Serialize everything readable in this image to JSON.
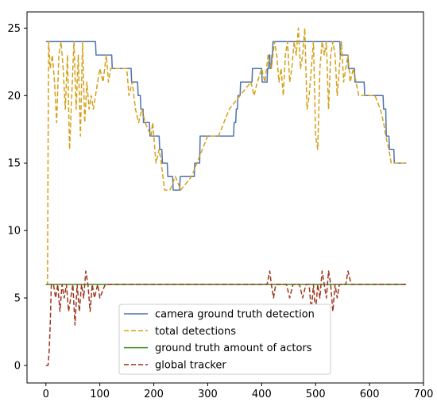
{
  "chart_data": {
    "type": "line",
    "title": "",
    "xlabel": "",
    "ylabel": "",
    "xlim": [
      -35,
      700
    ],
    "ylim": [
      -1.3,
      26.2
    ],
    "xticks": [
      0,
      100,
      200,
      300,
      400,
      500,
      600,
      700
    ],
    "yticks": [
      0,
      5,
      10,
      15,
      20,
      25
    ],
    "grid": false,
    "legend": {
      "placement": "lower center"
    },
    "series": [
      {
        "name": "camera ground truth detection",
        "color": "#4c72b0",
        "style": "solid",
        "x": [
          0,
          92,
          93,
          115,
          116,
          122,
          123,
          158,
          159,
          170,
          171,
          175,
          176,
          180,
          181,
          192,
          193,
          210,
          211,
          215,
          216,
          225,
          226,
          235,
          236,
          248,
          249,
          275,
          276,
          285,
          286,
          300,
          301,
          348,
          349,
          352,
          353,
          355,
          356,
          360,
          361,
          382,
          383,
          400,
          401,
          410,
          411,
          413,
          414,
          415,
          416,
          418,
          419,
          420,
          421,
          424,
          425,
          545,
          546,
          560,
          561,
          572,
          573,
          590,
          591,
          625,
          626,
          630,
          631,
          636,
          637,
          645,
          646,
          668
        ],
        "y": [
          24,
          24,
          23,
          23,
          23,
          23,
          22,
          22,
          21,
          21,
          20,
          20,
          19,
          19,
          18,
          18,
          17,
          17,
          16,
          16,
          15,
          15,
          14,
          14,
          13,
          13,
          14,
          14,
          15,
          15,
          17,
          17,
          17,
          17,
          18,
          18,
          19,
          19,
          20,
          20,
          21,
          21,
          22,
          22,
          21,
          21,
          22,
          22,
          23,
          23,
          22,
          22,
          23,
          23,
          24,
          24,
          24,
          24,
          23,
          23,
          22,
          22,
          21,
          21,
          20,
          20,
          19,
          19,
          17,
          17,
          16,
          16,
          15,
          15
        ]
      },
      {
        "name": "total detections",
        "color": "#d4a017",
        "style": "dashed",
        "x": [
          0,
          3,
          4,
          5,
          8,
          12,
          16,
          20,
          24,
          28,
          32,
          36,
          40,
          44,
          48,
          52,
          56,
          60,
          64,
          68,
          72,
          76,
          80,
          84,
          88,
          92,
          96,
          100,
          106,
          112,
          116,
          120,
          126,
          150,
          154,
          160,
          166,
          172,
          178,
          184,
          195,
          198,
          204,
          210,
          214,
          220,
          230,
          240,
          250,
          270,
          280,
          290,
          300,
          320,
          340,
          360,
          380,
          386,
          392,
          400,
          406,
          412,
          418,
          424,
          428,
          432,
          436,
          440,
          444,
          448,
          452,
          456,
          460,
          464,
          468,
          472,
          476,
          480,
          484,
          488,
          492,
          496,
          500,
          504,
          508,
          512,
          516,
          520,
          524,
          528,
          532,
          536,
          540,
          544,
          548,
          552,
          556,
          560,
          564,
          570,
          580,
          590,
          600,
          610,
          620,
          626,
          630,
          636,
          640,
          646,
          655,
          668
        ],
        "y": [
          6,
          6,
          16,
          24,
          22,
          23,
          21,
          18,
          23,
          24,
          22,
          19,
          23,
          16,
          20,
          24,
          19,
          23,
          17,
          24,
          18,
          21,
          19,
          20,
          19,
          20,
          21,
          22,
          21,
          23,
          21,
          22,
          22,
          22,
          20,
          21,
          19,
          18,
          19,
          18,
          17,
          18,
          15,
          16,
          15,
          13,
          13,
          14,
          13,
          14,
          15,
          16,
          17,
          17,
          19,
          20,
          21,
          20,
          21,
          22,
          21,
          23,
          22,
          24,
          23,
          21,
          22,
          20,
          23,
          24,
          21,
          22,
          24,
          23,
          25,
          22,
          23,
          25,
          19,
          20,
          22,
          24,
          17,
          16,
          22,
          24,
          23,
          24,
          19,
          23,
          24,
          23,
          20,
          22,
          24,
          21,
          22,
          23,
          21,
          22,
          20,
          20,
          20,
          20,
          19,
          18,
          17,
          16,
          15,
          15,
          15,
          15
        ]
      },
      {
        "name": "ground truth amount of actors",
        "color": "#3a8a1f",
        "style": "solid",
        "x": [
          0,
          668
        ],
        "y": [
          6,
          6
        ]
      },
      {
        "name": "global tracker",
        "color": "#a0361f",
        "style": "dashed",
        "x": [
          0,
          2,
          4,
          6,
          8,
          10,
          14,
          18,
          22,
          26,
          30,
          34,
          38,
          42,
          46,
          50,
          54,
          58,
          62,
          66,
          70,
          74,
          78,
          82,
          86,
          90,
          96,
          100,
          110,
          300,
          330,
          410,
          415,
          418,
          422,
          426,
          430,
          436,
          440,
          446,
          452,
          458,
          464,
          470,
          476,
          482,
          488,
          492,
          496,
          500,
          504,
          508,
          512,
          516,
          520,
          524,
          528,
          532,
          536,
          540,
          544,
          548,
          552,
          556,
          560,
          566,
          580,
          668
        ],
        "y": [
          0,
          0,
          0,
          1,
          3,
          6,
          6,
          5,
          6,
          4,
          6,
          5,
          6,
          4,
          5,
          6,
          3,
          6,
          4,
          6,
          5,
          7,
          6,
          4,
          6,
          5,
          6,
          5,
          6,
          6,
          6,
          6,
          7,
          6,
          5,
          6,
          6,
          6,
          6,
          6,
          5,
          6,
          6,
          6,
          5,
          6,
          6,
          4,
          6,
          4,
          6,
          5,
          7,
          6,
          5,
          7,
          6,
          4,
          6,
          5,
          6,
          6,
          6,
          6,
          7,
          6,
          6,
          6
        ]
      }
    ]
  }
}
